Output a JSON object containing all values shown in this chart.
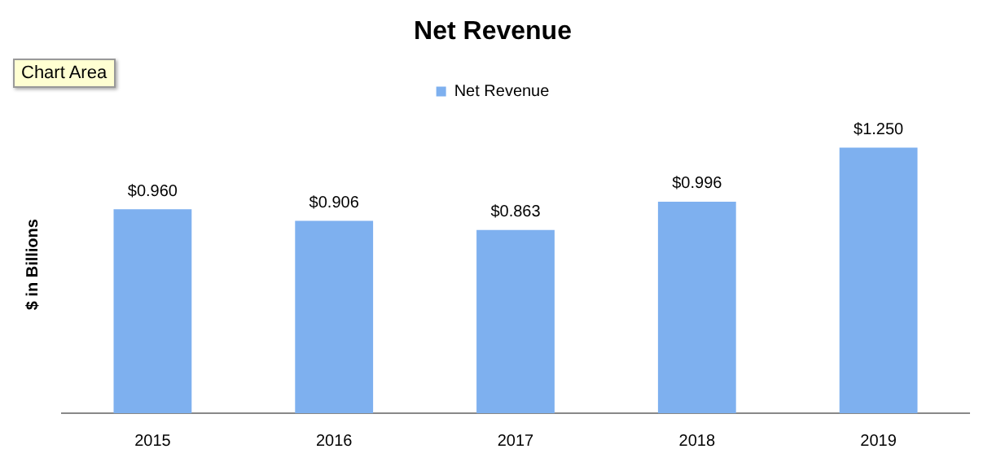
{
  "chart_data": {
    "type": "bar",
    "title": "Net Revenue",
    "ylabel": "$ in Billions",
    "categories": [
      "2015",
      "2016",
      "2017",
      "2018",
      "2019"
    ],
    "series": [
      {
        "name": "Net Revenue",
        "color": "#7eb0ef",
        "values": [
          0.96,
          0.906,
          0.863,
          0.996,
          1.25
        ],
        "value_labels": [
          "$0.960",
          "$0.906",
          "$0.863",
          "$0.996",
          "$1.250"
        ]
      }
    ],
    "tick_labels": "x",
    "legend": "top",
    "grid": false,
    "annotations": [
      "Chart Area"
    ]
  }
}
